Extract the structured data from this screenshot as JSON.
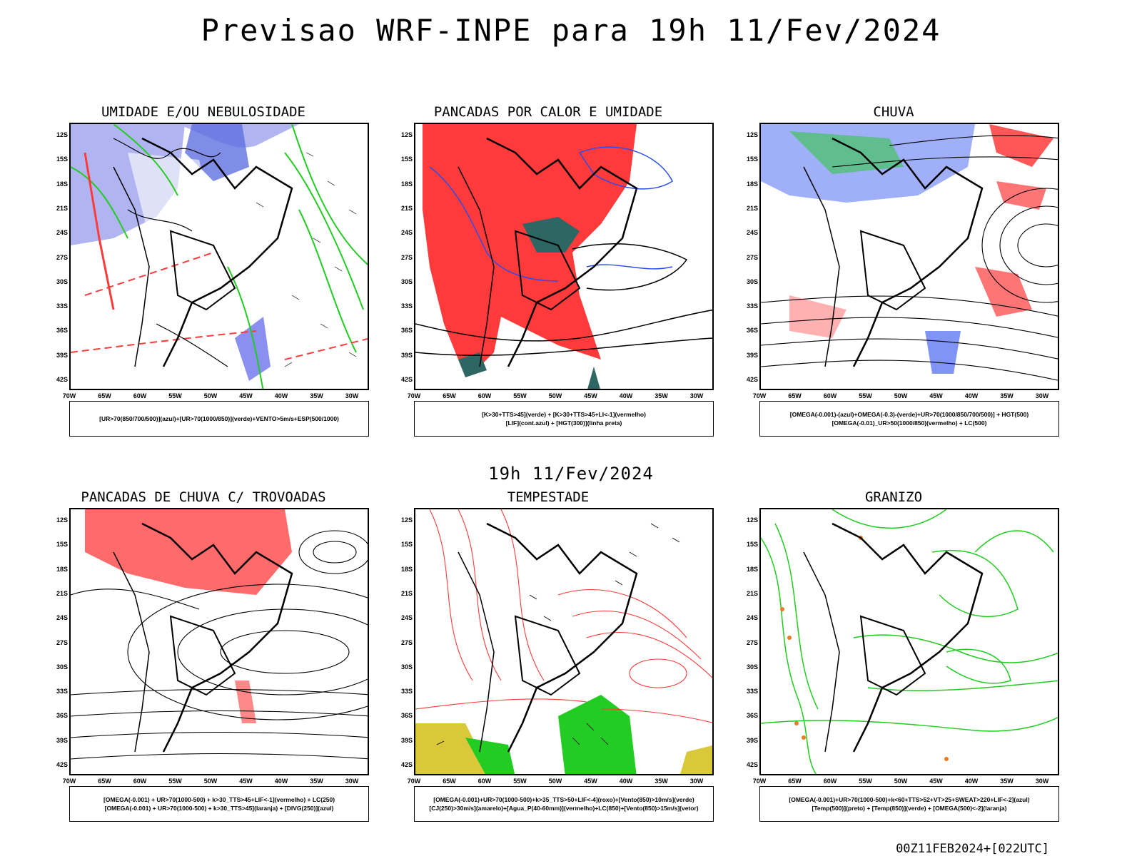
{
  "title": "Previsao WRF-INPE  para 19h 11/Fev/2024",
  "mid_title": "19h 11/Fev/2024",
  "footer": "00Z11FEB2024+[022UTC]",
  "lat_labels": [
    "12S",
    "15S",
    "18S",
    "21S",
    "24S",
    "27S",
    "30S",
    "33S",
    "36S",
    "39S",
    "42S"
  ],
  "lon_labels": [
    "70W",
    "65W",
    "60W",
    "55W",
    "50W",
    "45W",
    "40W",
    "35W",
    "30W"
  ],
  "colors": {
    "blue": "#2b4df0",
    "green": "#22cc22",
    "red": "#ff3a3a",
    "orange": "#f07a20",
    "lavender": "#b0b4f0",
    "dark_teal": "#2e6664"
  },
  "panels": [
    {
      "title": "UMIDADE E/OU NEBULOSIDADE",
      "legend": [
        "[UR>70(850/700/500)](azul)+[UR>70(1000/850)](verde)+VENTO>5m/s+ESP(500/1000)"
      ]
    },
    {
      "title": "PANCADAS POR CALOR E UMIDADE",
      "legend": [
        "[K>30+TTS>45](verde) + [K>30+TTS>45+LI<-1](vermelho)",
        "[LIF](cont.azul) + [HGT(300)](linha preta)"
      ]
    },
    {
      "title": "CHUVA",
      "legend": [
        "[OMEGA(-0.001)-(azul)+OMEGA(-0.3)-(verde)+UR>70(1000/850/700/500)] + HGT(500)",
        "[OMEGA(-0.01)_UR>50(1000/850)(vermelho) + LC(500)"
      ]
    },
    {
      "title": "PANCADAS DE CHUVA C/ TROVOADAS",
      "legend": [
        "[OMEGA(-0.001) + UR>70(1000-500) + k>30_TTS>45+LIF<-1](vermelho) + LC(250)",
        "[OMEGA(-0.001) + UR>70(1000-500) + k>30_TTS>45](laranja) + [DIVG(250)](azul)"
      ]
    },
    {
      "title": "TEMPESTADE",
      "legend": [
        "[OMEGA(-0.001)+UR>70(1000-500)+k>35_TTS>50+LIF<-4](roxo)+[Vento(850)>10m/s](verde)",
        "[CJ(250)>30m/s](amarelo)+[Agua_P(40-60mm)](vermelho)+LC(850)+[Vento(850)>15m/s](vetor)"
      ]
    },
    {
      "title": "GRANIZO",
      "legend": [
        "[OMEGA(-0.001)+UR>70(1000-500)+k<60+TTS>52+VT>25+SWEAT>220+LIF<-2](azul)",
        "[Temp(500)](preto) + [Temp(850)](verde) + [OMEGA(500)<-2](laranja)"
      ]
    }
  ]
}
